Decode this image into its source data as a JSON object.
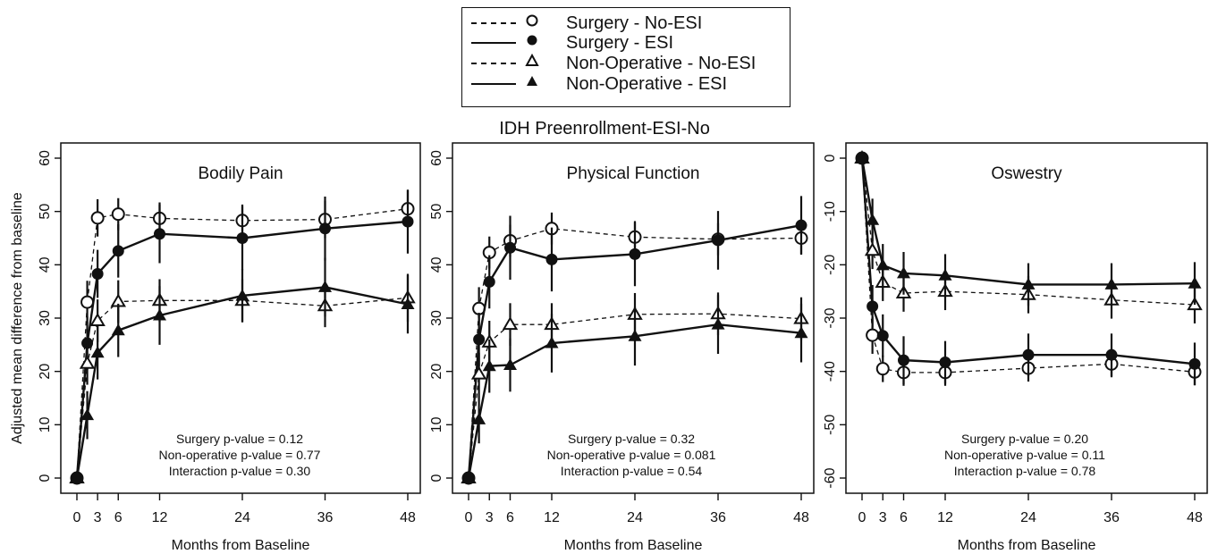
{
  "suptitle": "IDH Preenrollment-ESI-No",
  "legend": [
    {
      "label": "Surgery - No-ESI",
      "line": "dashed",
      "marker": "open-circle"
    },
    {
      "label": "Surgery - ESI",
      "line": "solid",
      "marker": "filled-circle"
    },
    {
      "label": "Non-Operative - No-ESI",
      "line": "dashed",
      "marker": "open-triangle"
    },
    {
      "label": "Non-Operative - ESI",
      "line": "solid",
      "marker": "filled-triangle"
    }
  ],
  "ylabel": "Adjusted mean difference from baseline",
  "xlabel": "Months from Baseline",
  "chart_data": [
    {
      "type": "line",
      "title": "Bodily Pain",
      "x": [
        0,
        1.5,
        3,
        6,
        12,
        24,
        36,
        48
      ],
      "xticks": [
        0,
        3,
        6,
        12,
        24,
        36,
        48
      ],
      "ylim": [
        0,
        60
      ],
      "yticks": [
        0,
        10,
        20,
        30,
        40,
        50,
        60
      ],
      "series": [
        {
          "name": "Surgery - No-ESI",
          "values": [
            0,
            33,
            48.8,
            49.5,
            48.7,
            48.3,
            48.5,
            50.5
          ],
          "err": [
            0,
            4,
            3.5,
            3,
            3,
            3,
            3.5,
            3.5
          ]
        },
        {
          "name": "Surgery - ESI",
          "values": [
            0,
            25.3,
            38.3,
            42.6,
            45.8,
            45,
            46.8,
            48.1
          ],
          "err": [
            0,
            5,
            4.5,
            5,
            5.5,
            6,
            6,
            6
          ]
        },
        {
          "name": "Non-Operative - No-ESI",
          "values": [
            0,
            21.5,
            29.5,
            33.1,
            33.3,
            33.3,
            32.3,
            33.8
          ],
          "err": [
            0,
            4,
            4,
            4,
            4,
            4,
            4,
            4.5
          ]
        },
        {
          "name": "Non-Operative - ESI",
          "values": [
            0,
            11.8,
            23.5,
            27.7,
            30.5,
            34.2,
            35.8,
            32.6
          ],
          "err": [
            0,
            4.5,
            5,
            5,
            5.5,
            5,
            5.5,
            5.5
          ]
        }
      ],
      "annotations": [
        "Surgery p-value = 0.12",
        "Non-operative p-value = 0.77",
        "Interaction p-value = 0.30"
      ]
    },
    {
      "type": "line",
      "title": "Physical Function",
      "x": [
        0,
        1.5,
        3,
        6,
        12,
        24,
        36,
        48
      ],
      "xticks": [
        0,
        3,
        6,
        12,
        24,
        36,
        48
      ],
      "ylim": [
        0,
        60
      ],
      "yticks": [
        0,
        10,
        20,
        30,
        40,
        50,
        60
      ],
      "series": [
        {
          "name": "Surgery - No-ESI",
          "values": [
            0,
            31.8,
            42.3,
            44.5,
            46.8,
            45.2,
            44.8,
            45
          ],
          "err": [
            0,
            4,
            3,
            3,
            3,
            3,
            3,
            3
          ]
        },
        {
          "name": "Surgery - ESI",
          "values": [
            0,
            26,
            36.8,
            43.2,
            41,
            42,
            44.6,
            47.4
          ],
          "err": [
            0,
            5,
            5,
            6,
            6,
            6,
            5.5,
            5.5
          ]
        },
        {
          "name": "Non-Operative - No-ESI",
          "values": [
            0,
            19.5,
            25.5,
            28.8,
            28.8,
            30.7,
            30.8,
            29.9
          ],
          "err": [
            0,
            4,
            4,
            4,
            4,
            4,
            4,
            4
          ]
        },
        {
          "name": "Non-Operative - ESI",
          "values": [
            0,
            11,
            21,
            21.2,
            25.3,
            26.6,
            28.8,
            27.2
          ],
          "err": [
            0,
            4.5,
            5,
            5,
            5.5,
            5.5,
            5.5,
            5.5
          ]
        }
      ],
      "annotations": [
        "Surgery p-value = 0.32",
        "Non-operative p-value = 0.081",
        "Interaction p-value = 0.54"
      ]
    },
    {
      "type": "line",
      "title": "Oswestry",
      "x": [
        0,
        1.5,
        3,
        6,
        12,
        24,
        36,
        48
      ],
      "xticks": [
        0,
        3,
        6,
        12,
        24,
        36,
        48
      ],
      "ylim": [
        -60,
        0
      ],
      "yticks": [
        0,
        -10,
        -20,
        -30,
        -40,
        -50,
        -60
      ],
      "series": [
        {
          "name": "Surgery - No-ESI",
          "values": [
            0,
            -33.2,
            -39.5,
            -40.2,
            -40.2,
            -39.4,
            -38.6,
            -40.1
          ],
          "err": [
            0,
            3.5,
            2.5,
            2.5,
            2.5,
            2.5,
            2.5,
            2.5
          ]
        },
        {
          "name": "Surgery - ESI",
          "values": [
            0,
            -27.8,
            -33.3,
            -37.9,
            -38.3,
            -36.9,
            -36.9,
            -38.6
          ],
          "err": [
            0,
            4,
            4,
            4.5,
            4,
            4,
            4,
            4
          ]
        },
        {
          "name": "Non-Operative - No-ESI",
          "values": [
            0,
            -17.3,
            -23.3,
            -25.3,
            -25,
            -25.6,
            -26.6,
            -27.5
          ],
          "err": [
            0,
            3.5,
            3.5,
            3.5,
            3.5,
            3.5,
            3.5,
            3.5
          ]
        },
        {
          "name": "Non-Operative - ESI",
          "values": [
            0,
            -11.6,
            -20.1,
            -21.6,
            -22,
            -23.7,
            -23.7,
            -23.5
          ],
          "err": [
            0,
            4,
            4,
            4,
            4,
            4,
            4,
            4
          ]
        }
      ],
      "annotations": [
        "Surgery p-value = 0.20",
        "Non-operative p-value = 0.11",
        "Interaction p-value = 0.78"
      ]
    }
  ]
}
